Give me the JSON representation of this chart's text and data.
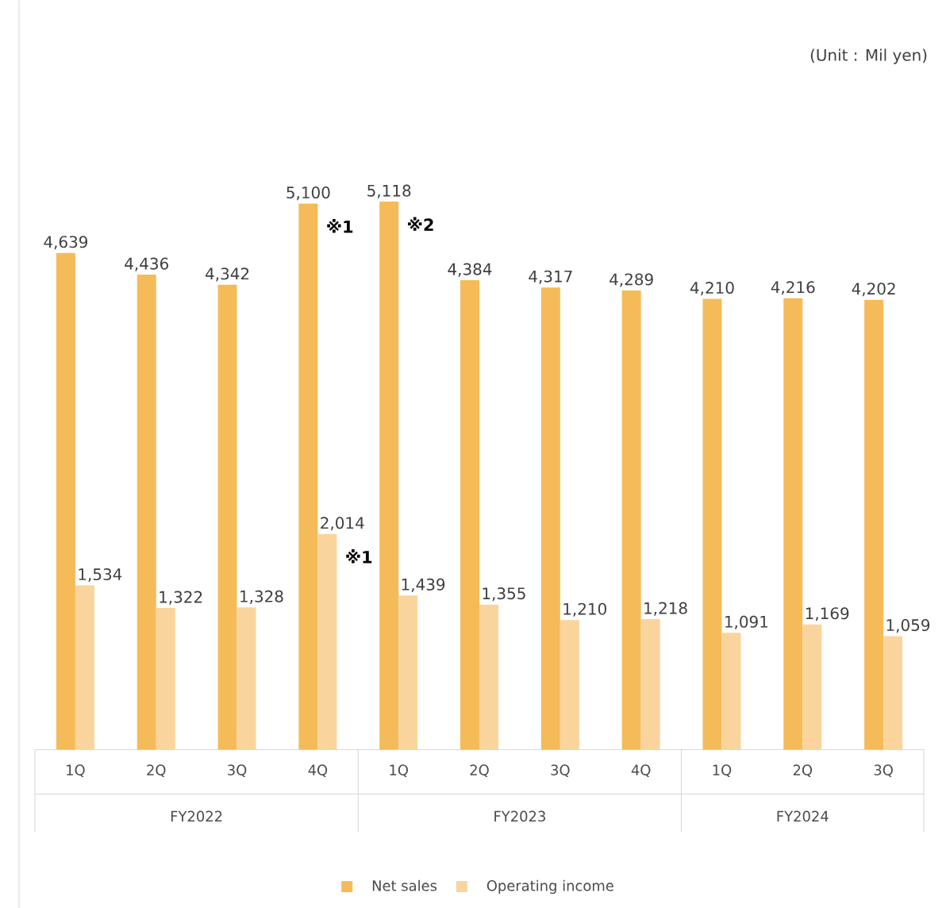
{
  "chart_data": {
    "type": "bar",
    "subtitle": "(Unit : Mil yen)",
    "categories": [
      "1Q",
      "2Q",
      "3Q",
      "4Q",
      "1Q",
      "2Q",
      "3Q",
      "4Q",
      "1Q",
      "2Q",
      "3Q"
    ],
    "series": [
      {
        "name": "Net sales",
        "color": "#f5bb59",
        "values": [
          4639,
          4436,
          4342,
          5100,
          5118,
          4384,
          4317,
          4289,
          4210,
          4216,
          4202
        ],
        "value_labels": [
          "4,639",
          "4,436",
          "4,342",
          "5,100",
          "5,118",
          "4,384",
          "4,317",
          "4,289",
          "4,210",
          "4,216",
          "4,202"
        ]
      },
      {
        "name": "Operating income",
        "color": "#f9d59d",
        "values": [
          1534,
          1322,
          1328,
          2014,
          1439,
          1355,
          1210,
          1218,
          1091,
          1169,
          1059
        ],
        "value_labels": [
          "1,534",
          "1,322",
          "1,328",
          "2,014",
          "1,439",
          "1,355",
          "1,210",
          "1,218",
          "1,091",
          "1,169",
          "1,059"
        ]
      }
    ],
    "annotations": [
      "FY2022",
      "FY2023",
      "FY2024",
      {
        "text": "※1",
        "x": "4Q",
        "y": 5100
      },
      "※2",
      {
        "text": "※1",
        "x": "4Q",
        "y": 2014
      }
    ],
    "legend": "bottom"
  }
}
